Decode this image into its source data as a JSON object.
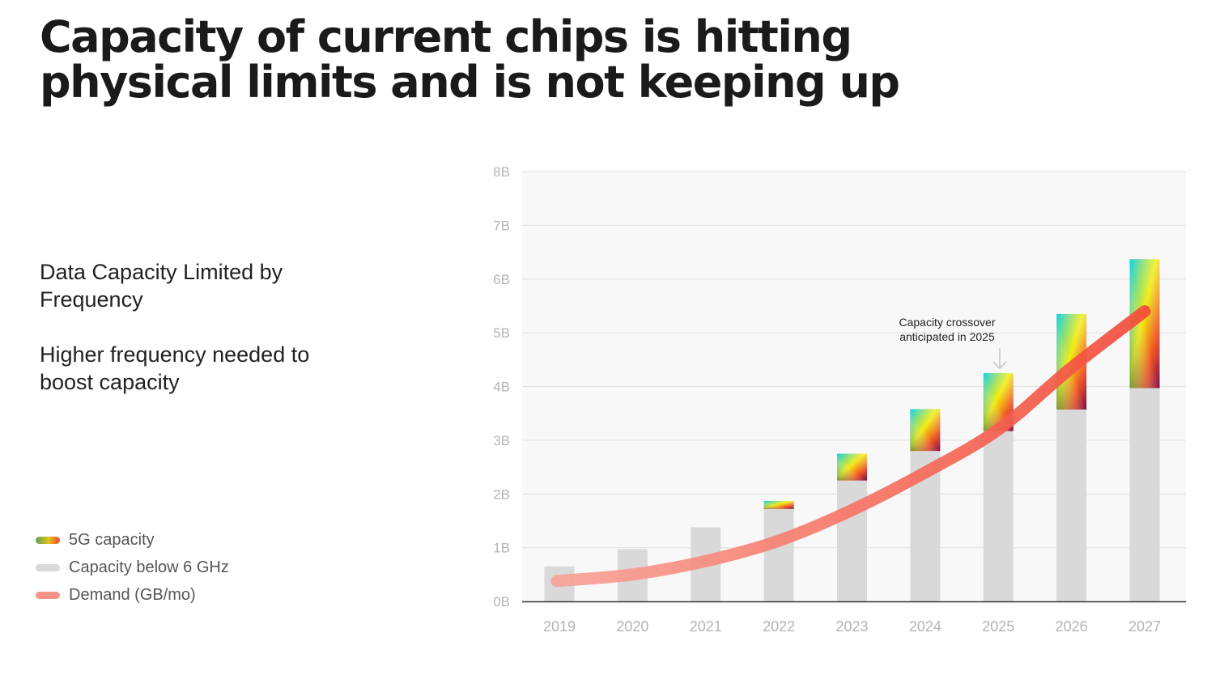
{
  "title": {
    "line1": "Capacity of current chips is hitting",
    "line2": "physical limits and is not keeping up"
  },
  "subtitles": {
    "first_line1": "Data Capacity Limited by",
    "first_line2": "Frequency",
    "second_line1": "Higher frequency needed to",
    "second_line2": "boost capacity"
  },
  "legend": [
    {
      "label": "5G capacity",
      "color": "gradient"
    },
    {
      "label": "Capacity below 6 GHz",
      "color": "#d9d9d9"
    },
    {
      "label": "Demand (GB/mo)",
      "color": "#f8938a"
    }
  ],
  "annotation": {
    "line1": "Capacity crossover",
    "line2": "anticipated in 2025",
    "year": "2025"
  },
  "colors": {
    "bar_base": "#d9d9d9",
    "demand_line": "#f4523f",
    "plot_background": "#f8f8f8",
    "gridline": "#e4e4e4",
    "axis": "#333333",
    "tick_text": "#b4b4b4"
  },
  "chart_data": {
    "type": "bar",
    "categories": [
      "2019",
      "2020",
      "2021",
      "2022",
      "2023",
      "2024",
      "2025",
      "2026",
      "2027"
    ],
    "yticks": [
      "0B",
      "1B",
      "2B",
      "3B",
      "4B",
      "5B",
      "6B",
      "7B",
      "8B"
    ],
    "ylim": [
      0,
      8
    ],
    "grid": true,
    "stacked": true,
    "series": [
      {
        "name": "Capacity below 6 GHz",
        "kind": "bar",
        "values": [
          0.65,
          0.97,
          1.38,
          1.72,
          2.25,
          2.8,
          3.17,
          3.57,
          3.97
        ]
      },
      {
        "name": "5G capacity",
        "kind": "bar",
        "values": [
          0,
          0,
          0,
          0.15,
          0.5,
          0.78,
          1.08,
          1.78,
          2.4
        ]
      },
      {
        "name": "Demand (GB/mo)",
        "kind": "line",
        "values": [
          0.38,
          0.5,
          0.75,
          1.13,
          1.7,
          2.4,
          3.2,
          4.35,
          5.4
        ]
      }
    ],
    "legend_position": "bottom-left"
  }
}
